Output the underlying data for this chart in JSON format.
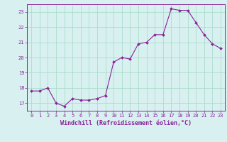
{
  "x": [
    0,
    1,
    2,
    3,
    4,
    5,
    6,
    7,
    8,
    9,
    10,
    11,
    12,
    13,
    14,
    15,
    16,
    17,
    18,
    19,
    20,
    21,
    22,
    23
  ],
  "y": [
    17.8,
    17.8,
    18.0,
    17.0,
    16.8,
    17.3,
    17.2,
    17.2,
    17.3,
    17.5,
    19.7,
    20.0,
    19.9,
    20.9,
    21.0,
    21.5,
    21.5,
    23.2,
    23.1,
    23.1,
    22.3,
    21.5,
    20.9,
    20.6
  ],
  "line_color": "#882299",
  "marker_color": "#882299",
  "bg_color": "#d8f0f0",
  "grid_color": "#aaddcc",
  "xlabel": "Windchill (Refroidissement éolien,°C)",
  "xlim": [
    -0.5,
    23.5
  ],
  "ylim": [
    16.5,
    23.5
  ],
  "yticks": [
    17,
    18,
    19,
    20,
    21,
    22,
    23
  ],
  "xticks": [
    0,
    1,
    2,
    3,
    4,
    5,
    6,
    7,
    8,
    9,
    10,
    11,
    12,
    13,
    14,
    15,
    16,
    17,
    18,
    19,
    20,
    21,
    22,
    23
  ],
  "tick_color": "#882299",
  "tick_fontsize": 5.0,
  "xlabel_fontsize": 6.0,
  "line_width": 0.8,
  "marker_size": 2.0
}
